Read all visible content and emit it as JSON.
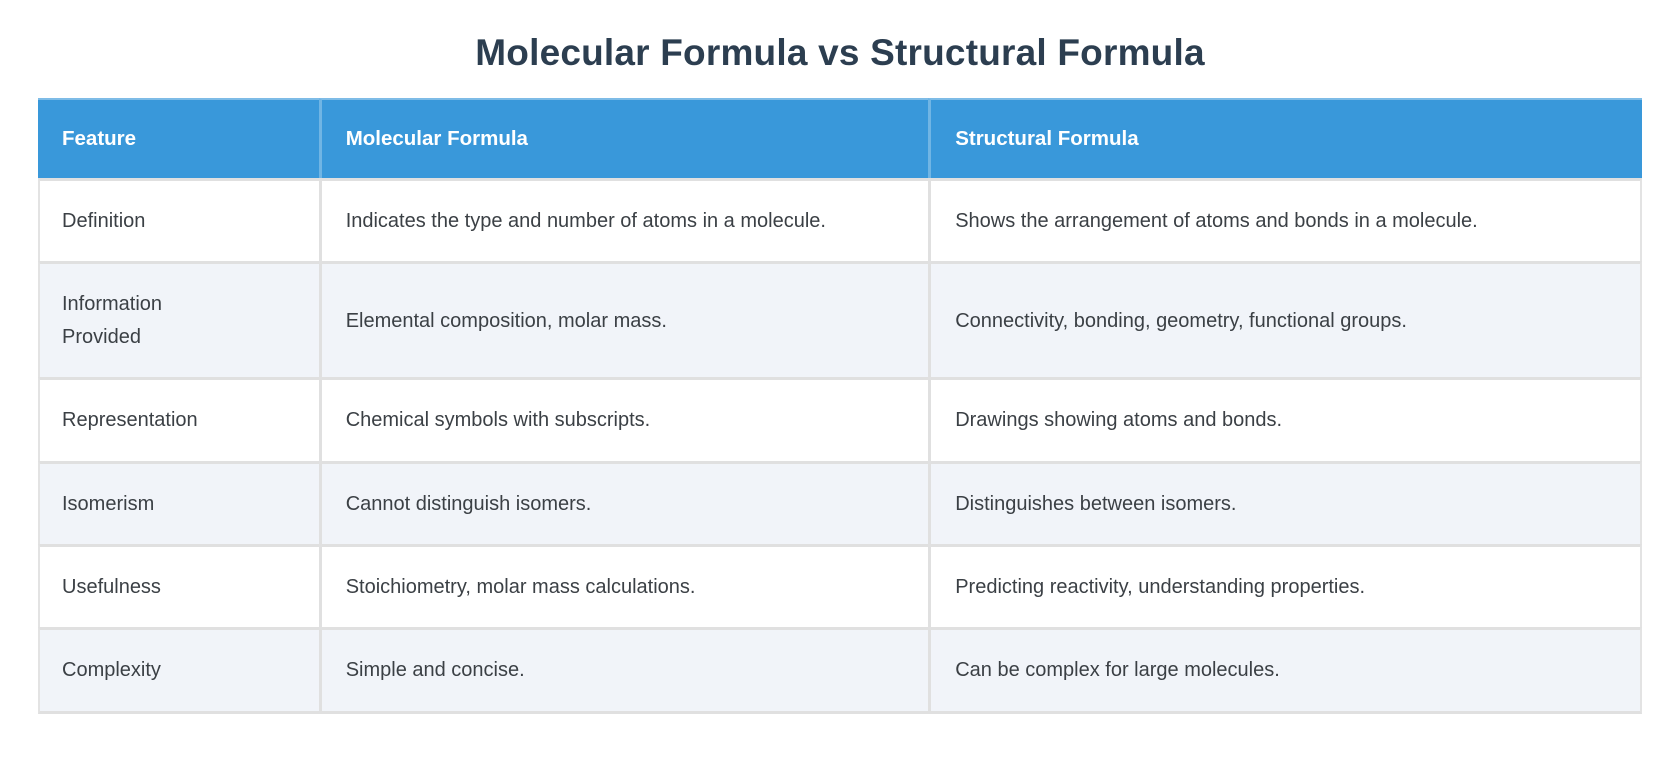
{
  "title": "Molecular Formula vs Structural Formula",
  "table": {
    "columns": [
      "Feature",
      "Molecular Formula",
      "Structural Formula"
    ],
    "rows": [
      {
        "feature": "Definition",
        "molecular": "Indicates the type and number of atoms in a molecule.",
        "structural": "Shows the arrangement of atoms and bonds in a molecule."
      },
      {
        "feature": "Information Provided",
        "molecular": "Elemental composition, molar mass.",
        "structural": "Connectivity, bonding, geometry, functional groups."
      },
      {
        "feature": "Representation",
        "molecular": "Chemical symbols with subscripts.",
        "structural": "Drawings showing atoms and bonds."
      },
      {
        "feature": "Isomerism",
        "molecular": "Cannot distinguish isomers.",
        "structural": "Distinguishes between isomers."
      },
      {
        "feature": "Usefulness",
        "molecular": "Stoichiometry, molar mass calculations.",
        "structural": "Predicting reactivity, understanding properties."
      },
      {
        "feature": "Complexity",
        "molecular": "Simple and concise.",
        "structural": "Can be complex for large molecules."
      }
    ]
  },
  "colors": {
    "header_bg": "#3998da",
    "header_text": "#ffffff",
    "row_bg": "#ffffff",
    "row_alt_bg": "#f1f4f9",
    "divider": "#e0e0e0",
    "title_text": "#2c3e50",
    "body_text": "#3b4045"
  }
}
